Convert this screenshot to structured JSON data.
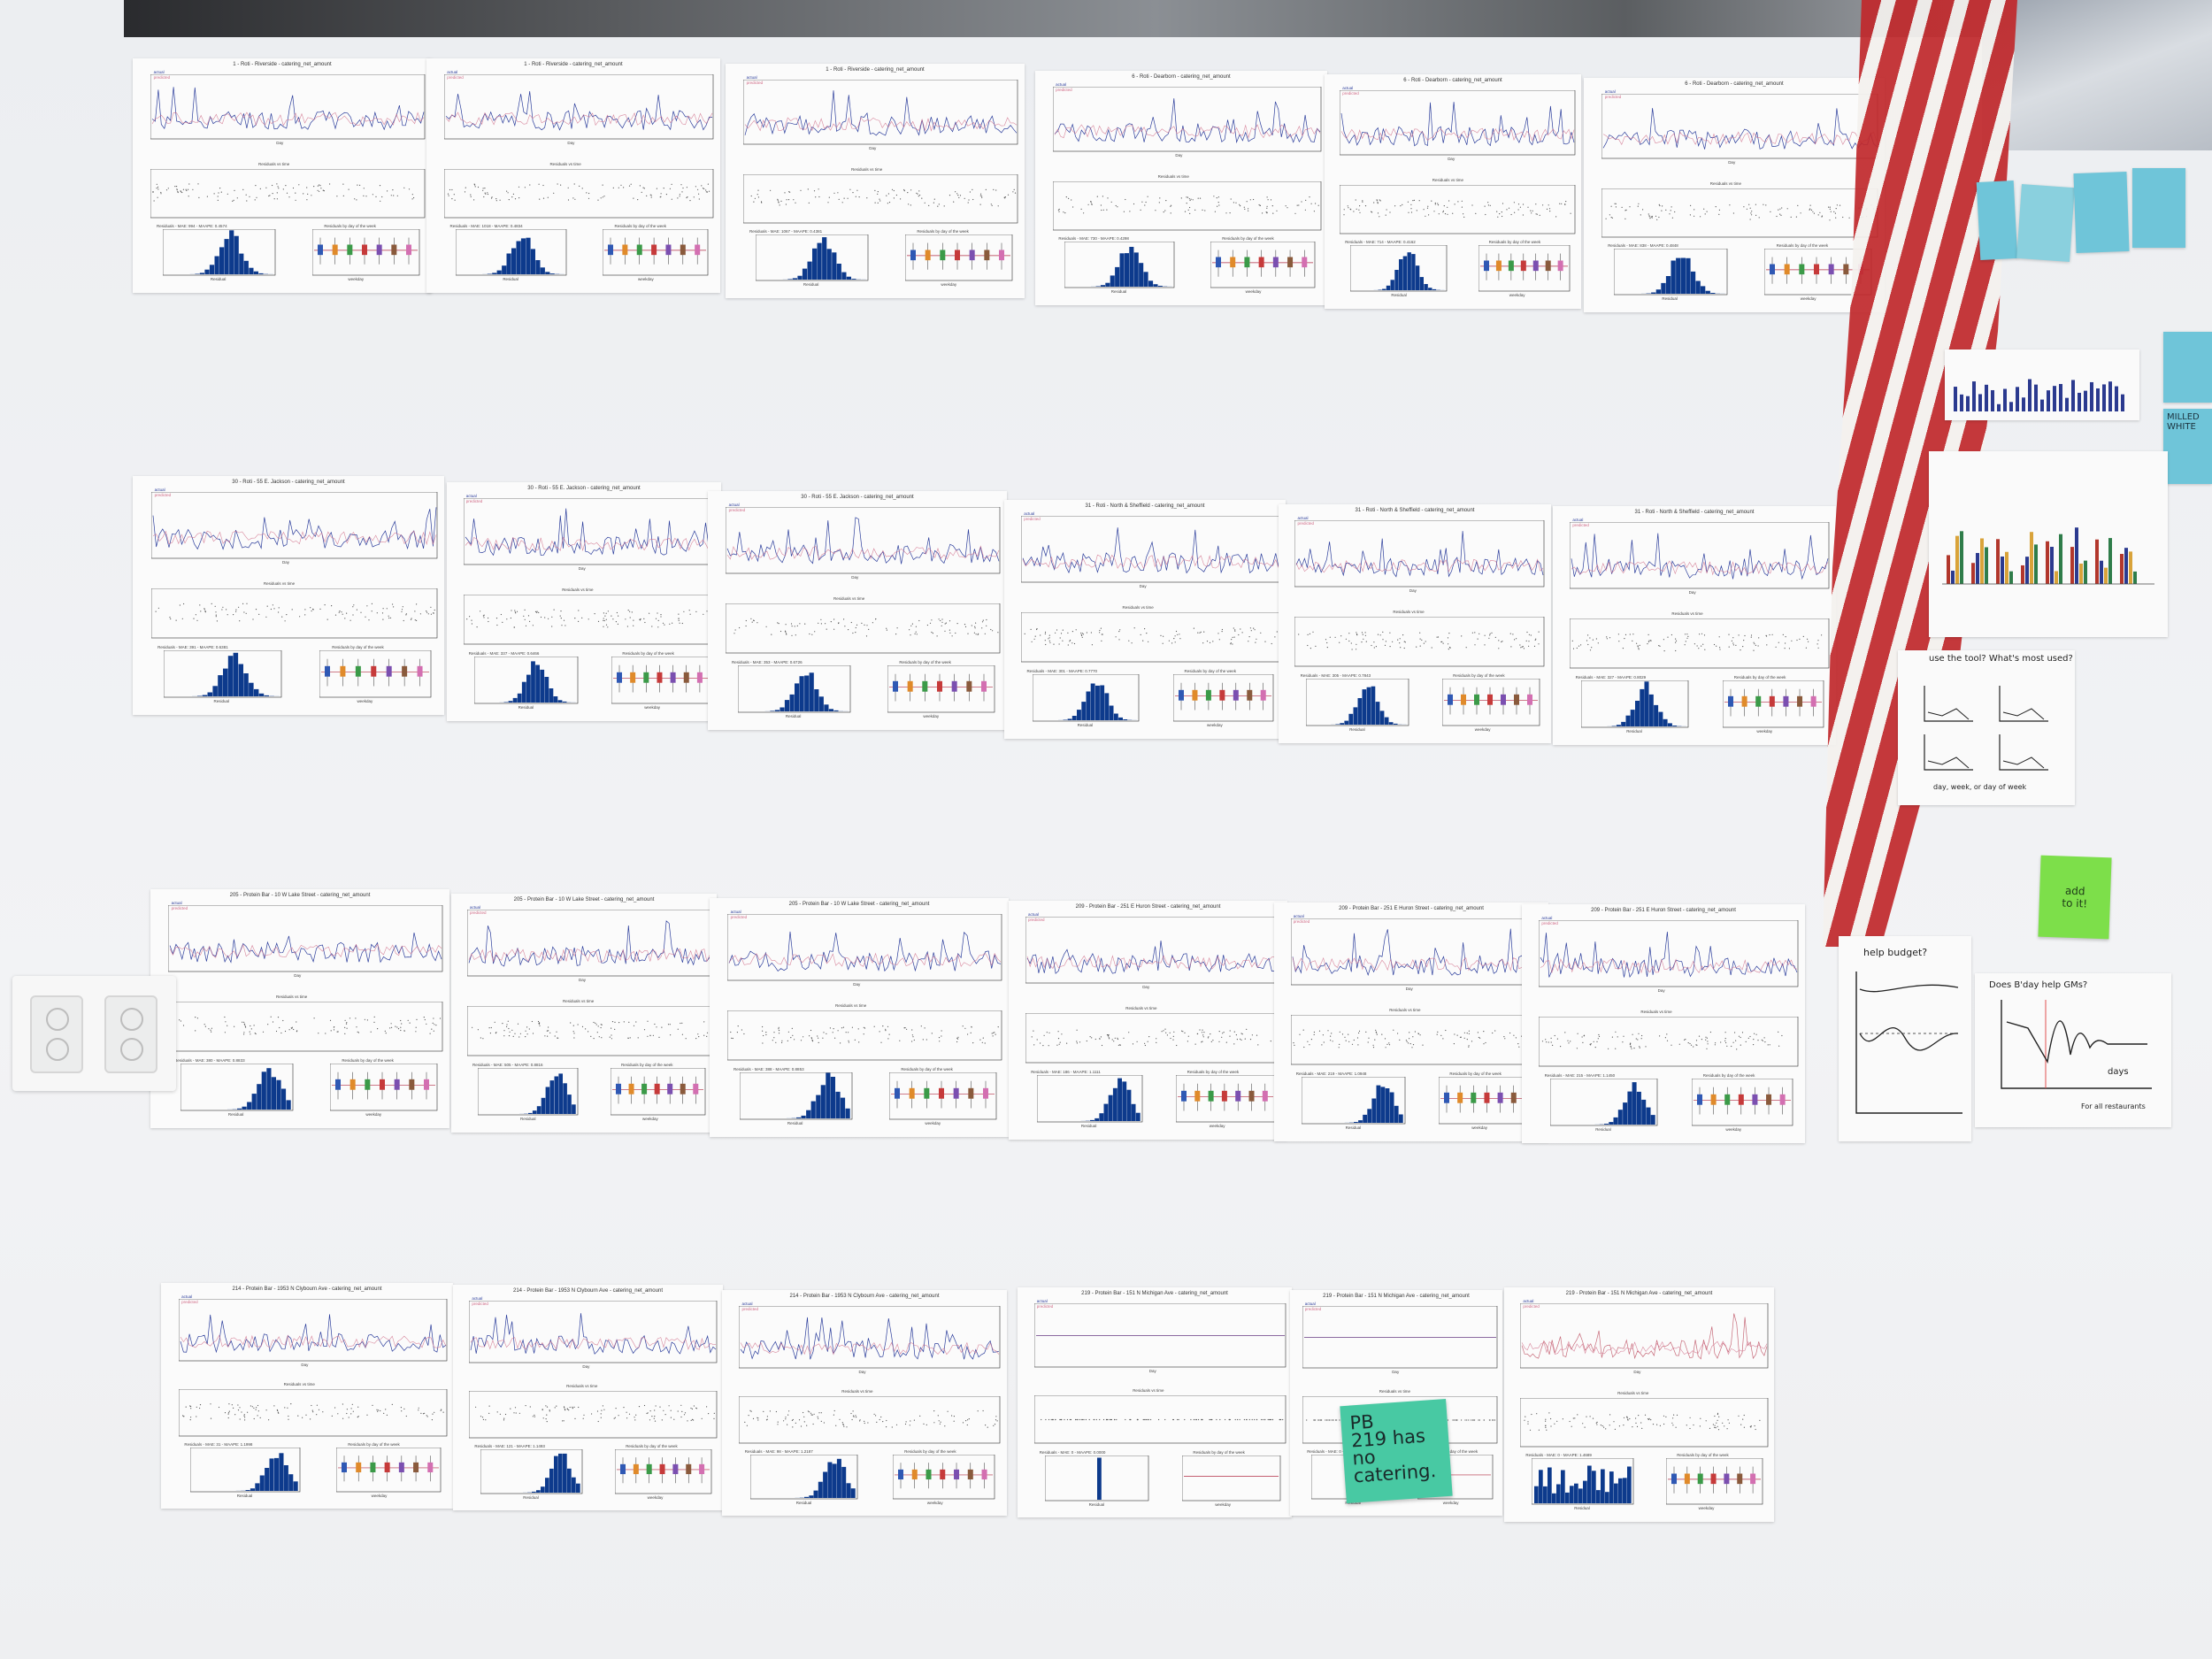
{
  "scene": {
    "colors": {
      "wall": "#eef0f2",
      "actual": "#2c3e9c",
      "predicted": "#d06a86",
      "hist_bar": "#0d3a8c",
      "sticky_green": "#48c9a3",
      "sticky_lime": "#7ddf4a"
    },
    "sheets": [
      {
        "title": "1 - Roti - Riverside - catering_net_amount",
        "stats": "Residuals - MAE: 994 - MAAPE: 0.4574"
      },
      {
        "title": "1 - Roti - Riverside - catering_net_amount",
        "stats": "Residuals - MAE: 1018 - MAAPE: 0.4834"
      },
      {
        "title": "1 - Roti - Riverside - catering_net_amount",
        "stats": "Residuals - MAE: 1067 - MAAPE: 0.4381"
      },
      {
        "title": "6 - Roti - Dearborn - catering_net_amount",
        "stats": "Residuals - MAE: 730 - MAAPE: 0.4298"
      },
      {
        "title": "6 - Roti - Dearborn - catering_net_amount",
        "stats": "Residuals - MAE: 714 - MAAPE: 0.4162"
      },
      {
        "title": "6 - Roti - Dearborn - catering_net_amount",
        "stats": "Residuals - MAE: 838 - MAAPE: 0.4848"
      },
      {
        "title": "30 - Roti - 55 E. Jackson - catering_net_amount",
        "stats": "Residuals - MAE: 391 - MAAPE: 0.6381"
      },
      {
        "title": "30 - Roti - 55 E. Jackson - catering_net_amount",
        "stats": "Residuals - MAE: 337 - MAAPE: 0.6466"
      },
      {
        "title": "30 - Roti - 55 E. Jackson - catering_net_amount",
        "stats": "Residuals - MAE: 353 - MAAPE: 0.6726"
      },
      {
        "title": "31 - Roti - North & Sheffield - catering_net_amount",
        "stats": "Residuals - MAE: 301 - MAAPE: 0.7770"
      },
      {
        "title": "31 - Roti - North & Sheffield - catering_net_amount",
        "stats": "Residuals - MAE: 305 - MAAPE: 0.7843"
      },
      {
        "title": "31 - Roti - North & Sheffield - catering_net_amount",
        "stats": "Residuals - MAE: 327 - MAAPE: 0.8029"
      },
      {
        "title": "205 - Protein Bar - 10 W Lake Street - catering_net_amount",
        "stats": "Residuals - MAE: 380 - MAAPE: 0.8833"
      },
      {
        "title": "205 - Protein Bar - 10 W Lake Street - catering_net_amount",
        "stats": "Residuals - MAE: 505 - MAAPE: 0.8816"
      },
      {
        "title": "205 - Protein Bar - 10 W Lake Street - catering_net_amount",
        "stats": "Residuals - MAE: 388 - MAAPE: 0.8853"
      },
      {
        "title": "209 - Protein Bar - 251 E Huron Street - catering_net_amount",
        "stats": "Residuals - MAE: 186 - MAAPE: 1.1111"
      },
      {
        "title": "209 - Protein Bar - 251 E Huron Street - catering_net_amount",
        "stats": "Residuals - MAE: 219 - MAAPE: 1.0948"
      },
      {
        "title": "209 - Protein Bar - 251 E Huron Street - catering_net_amount",
        "stats": "Residuals - MAE: 215 - MAAPE: 1.1450"
      },
      {
        "title": "214 - Protein Bar - 1953 N Clybourn Ave - catering_net_amount",
        "stats": "Residuals - MAE: 31 - MAAPE: 1.1998"
      },
      {
        "title": "214 - Protein Bar - 1953 N Clybourn Ave - catering_net_amount",
        "stats": "Residuals - MAE: 121 - MAAPE: 1.1493"
      },
      {
        "title": "214 - Protein Bar - 1953 N Clybourn Ave - catering_net_amount",
        "stats": "Residuals - MAE: 98 - MAAPE: 1.2187"
      },
      {
        "title": "219 - Protein Bar - 151 N Michigan Ave - catering_net_amount",
        "stats": "Residuals - MAE: 0 - MAAPE: 0.0000"
      },
      {
        "title": "219 - Protein Bar - 151 N Michigan Ave - catering_net_amount",
        "stats": "Residuals - MAE: 0 - MAAPE: 0.0000"
      },
      {
        "title": "219 - Protein Bar - 151 N Michigan Ave - catering_net_amount",
        "stats": "Residuals - MAE: 0 - MAAPE: 1.4689"
      }
    ],
    "shared": {
      "legend_actual": "actual",
      "legend_predicted": "predicted",
      "residuals_title": "Residuals vs time",
      "by_day_title": "Residuals by day of the week",
      "x_day": "Day",
      "x_residual": "Residual",
      "x_weekday": "weekday"
    },
    "sticky_green": "PB\n219 has\nno\ncatering.",
    "sticky_lime": "add\nto it!",
    "hand_notes": {
      "q_tool": "use the tool? What's most used?",
      "q_budget": "help budget?",
      "q_gms": "Does B'day help GMs?",
      "days": "days",
      "all_restaurants": "For all restaurants",
      "day_week": "day, week, or day of week",
      "milled": "MILLED WHITE"
    }
  }
}
